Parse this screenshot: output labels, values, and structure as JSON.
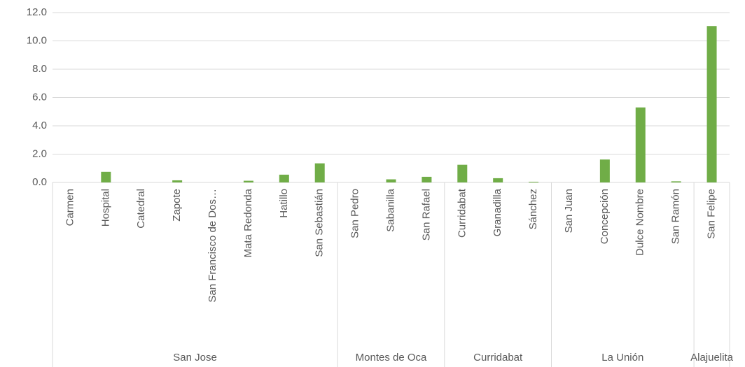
{
  "chart_data": {
    "type": "bar",
    "color": "#70ad47",
    "ylim": [
      0,
      12
    ],
    "yticks": [
      {
        "value": 0,
        "label": "0.0"
      },
      {
        "value": 2,
        "label": "2.0"
      },
      {
        "value": 4,
        "label": "4.0"
      },
      {
        "value": 6,
        "label": "6.0"
      },
      {
        "value": 8,
        "label": "8.0"
      },
      {
        "value": 10,
        "label": "10.0"
      },
      {
        "value": 12,
        "label": "12.0"
      }
    ],
    "grid": true,
    "groups": [
      {
        "name": "San Jose",
        "categories": [
          "Carmen",
          "Hospital",
          "Catedral",
          "Zapote",
          "San Francisco de Dos…",
          "Mata Redonda",
          "Hatillo",
          "San Sebastián"
        ],
        "values": [
          0,
          0.75,
          0,
          0.15,
          0,
          0.12,
          0.55,
          1.35
        ]
      },
      {
        "name": "Montes de Oca",
        "categories": [
          "San Pedro",
          "Sabanilla",
          "San Rafael"
        ],
        "values": [
          0,
          0.22,
          0.4
        ]
      },
      {
        "name": "Curridabat",
        "categories": [
          "Curridabat",
          "Granadilla",
          "Sánchez"
        ],
        "values": [
          1.25,
          0.3,
          0.05
        ]
      },
      {
        "name": "La Unión",
        "categories": [
          "San Juan",
          "Concepción",
          "Dulce Nombre",
          "San Ramón"
        ],
        "values": [
          0,
          1.62,
          5.3,
          0.08
        ]
      },
      {
        "name": "Alajuelita",
        "categories": [
          "San Felipe"
        ],
        "values": [
          11.05
        ]
      }
    ]
  }
}
